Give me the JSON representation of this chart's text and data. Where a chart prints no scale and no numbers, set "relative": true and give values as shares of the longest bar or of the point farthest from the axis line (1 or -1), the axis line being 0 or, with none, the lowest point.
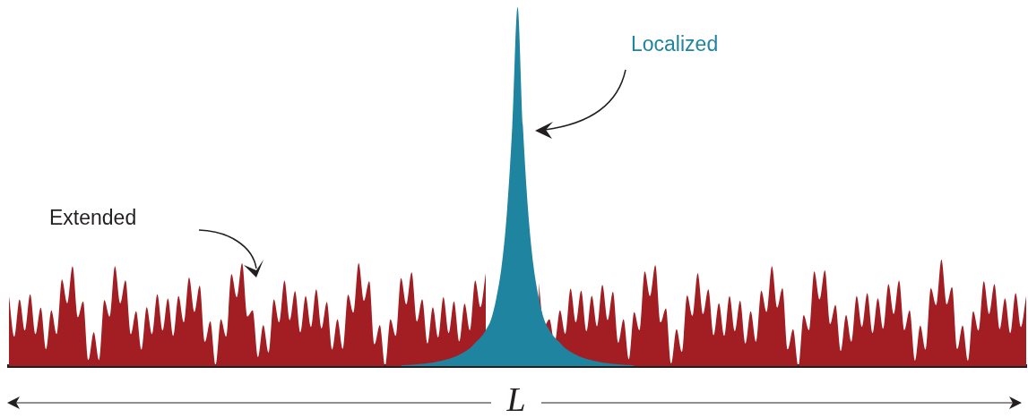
{
  "chart_data": {
    "type": "area",
    "relative": true,
    "xlabel": "L",
    "categories": [
      null,
      null,
      null,
      null,
      null,
      null,
      null,
      null,
      null,
      null,
      null,
      null,
      null,
      null,
      null,
      null,
      null,
      null,
      null,
      null,
      null,
      null,
      null,
      null,
      null,
      null,
      null,
      null,
      null,
      null,
      null,
      null,
      null,
      null,
      null,
      null,
      null,
      null,
      null,
      null,
      null,
      null,
      null,
      null,
      null,
      null,
      null,
      null,
      null,
      null,
      null,
      null,
      null,
      null,
      null,
      null,
      null,
      null,
      null,
      null,
      null,
      null,
      null,
      null,
      null,
      null,
      null,
      null,
      null,
      null,
      null,
      null,
      null,
      null,
      null,
      null,
      null,
      null,
      null,
      null,
      null,
      null,
      null,
      null,
      null,
      null,
      null,
      null,
      null,
      null,
      null,
      null,
      null,
      null,
      null,
      null,
      null,
      null,
      null,
      null,
      null,
      null,
      null,
      null,
      null,
      null,
      null,
      null,
      null,
      null,
      null,
      null,
      null,
      null,
      null,
      null,
      null,
      null,
      null,
      null,
      null,
      null,
      null,
      null,
      null,
      null,
      null,
      null,
      null,
      null,
      null,
      null,
      null,
      null,
      null,
      null,
      null,
      null,
      null,
      null,
      null,
      null,
      null,
      null,
      null,
      null,
      null,
      null,
      null,
      null,
      null,
      null,
      null,
      null,
      null,
      null,
      null,
      null,
      null,
      null,
      null,
      null,
      null,
      null,
      null,
      null,
      null,
      null,
      null,
      null,
      null,
      null,
      null,
      null,
      null,
      null,
      null,
      null,
      null,
      null,
      null,
      null,
      null,
      null,
      null,
      null,
      null,
      null,
      null,
      null,
      null,
      null,
      null
    ],
    "series": [
      {
        "name": "Extended",
        "color": "#a31e23",
        "values": [
          0.195,
          0.082,
          0.186,
          0.099,
          0.2,
          0.089,
          0.163,
          0.047,
          0.155,
          0.089,
          0.241,
          0.175,
          0.278,
          0.136,
          0.18,
          0.017,
          0.094,
          0.017,
          0.184,
          0.138,
          0.278,
          0.175,
          0.239,
          0.089,
          0.153,
          0.046,
          0.164,
          0.089,
          0.2,
          0.099,
          0.188,
          0.084,
          0.195,
          0.122,
          0.247,
          0.151,
          0.224,
          0.068,
          0.125,
          0.003,
          0.13,
          0.082,
          0.256,
          0.192,
          0.287,
          0.138,
          0.155,
          0.025,
          0.114,
          0.038,
          0.186,
          0.122,
          0.238,
          0.128,
          0.209,
          0.094,
          0.195,
          0.109,
          0.214,
          0.105,
          0.178,
          0.046,
          0.13,
          0.048,
          0.199,
          0.149,
          0.287,
          0.182,
          0.236,
          0.061,
          0.114,
          0,
          0.13,
          0.084,
          0.245,
          0.172,
          0.261,
          0.124,
          0.186,
          0.063,
          0.164,
          0.08,
          0.192,
          0.092,
          0.18,
          0.069,
          0.174,
          0.1,
          0.238,
          0.164,
          0.259,
          null,
          null,
          null,
          null,
          null,
          null,
          null,
          null,
          null,
          0.232,
          0.11,
          0.13,
          0.065,
          0.155,
          0.09,
          0.216,
          0.122,
          0.21,
          0.097,
          0.196,
          0.111,
          0.226,
          0.128,
          0.207,
          0.065,
          0.13,
          0.019,
          0.15,
          0.1,
          0.264,
          0.195,
          0.281,
          0.122,
          0.161,
          0.008,
          0.103,
          0.04,
          0.197,
          0.14,
          0.259,
          0.145,
          0.214,
          0.086,
          0.175,
          0.084,
          0.195,
          0.097,
          0.182,
          0.063,
          0.153,
          0.068,
          0.21,
          0.151,
          0.278,
          0.163,
          0.217,
          0.047,
          0.103,
          0,
          0.142,
          0.1,
          0.264,
          0.186,
          0.267,
          0.117,
          0.17,
          0.042,
          0.142,
          0.068,
          0.195,
          0.109,
          0.203,
          0.092,
          0.189,
          0.104,
          0.228,
          0.145,
          0.238,
          0.1,
          0.155,
          0.015,
          0.113,
          0.046,
          0.217,
          0.17,
          0.297,
          0.172,
          0.22,
          0.048,
          0.113,
          0.015,
          0.153,
          0.099,
          0.236,
          0.145,
          0.228,
          0.103,
          0.189,
          0.092,
          0.203,
          0.109,
          0.195
        ]
      },
      {
        "name": "Localized",
        "color": "#1f84a0",
        "values": [
          null,
          null,
          null,
          null,
          null,
          null,
          null,
          null,
          null,
          null,
          null,
          null,
          null,
          null,
          null,
          null,
          null,
          null,
          null,
          null,
          null,
          null,
          null,
          null,
          null,
          null,
          null,
          null,
          null,
          null,
          null,
          null,
          null,
          null,
          null,
          null,
          null,
          null,
          null,
          null,
          null,
          null,
          null,
          null,
          null,
          null,
          null,
          null,
          null,
          null,
          null,
          null,
          null,
          null,
          null,
          null,
          null,
          null,
          null,
          null,
          null,
          null,
          null,
          null,
          null,
          null,
          null,
          null,
          null,
          null,
          null,
          null,
          null,
          null,
          0.002,
          0.003,
          0.004,
          0.005,
          0.006,
          0.008,
          0.01,
          0.013,
          0.016,
          0.02,
          0.025,
          0.032,
          0.04,
          0.05,
          0.065,
          0.08,
          0.1,
          0.13,
          0.19,
          0.28,
          0.43,
          0.67,
          1,
          0.67,
          0.43,
          0.28,
          0.19,
          0.13,
          0.1,
          0.08,
          0.065,
          0.05,
          0.04,
          0.032,
          0.025,
          0.02,
          0.016,
          0.013,
          0.01,
          0.008,
          0.006,
          0.005,
          0.004,
          0.003,
          0.002,
          null,
          null,
          null,
          null,
          null,
          null,
          null,
          null,
          null,
          null,
          null,
          null,
          null,
          null,
          null,
          null,
          null,
          null,
          null,
          null,
          null,
          null,
          null,
          null,
          null,
          null,
          null,
          null,
          null,
          null,
          null,
          null,
          null,
          null,
          null,
          null,
          null,
          null,
          null,
          null,
          null,
          null,
          null,
          null,
          null,
          null,
          null,
          null,
          null,
          null,
          null,
          null,
          null,
          null,
          null,
          null,
          null,
          null,
          null,
          null,
          null,
          null,
          null,
          null,
          null,
          null,
          null,
          null,
          null,
          null,
          null,
          null,
          null,
          null
        ]
      }
    ]
  }
}
